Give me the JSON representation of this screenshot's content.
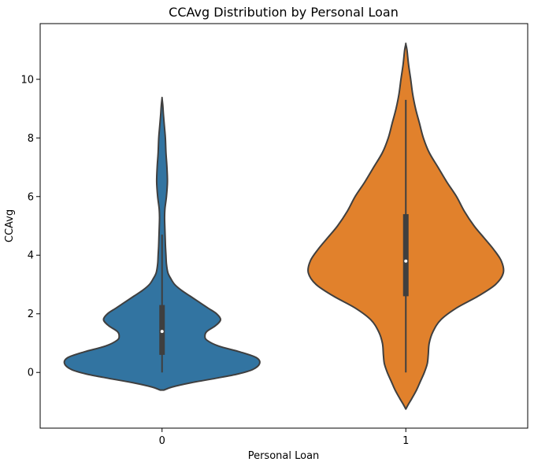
{
  "chart_data": {
    "type": "violin",
    "title": "CCAvg Distribution by Personal Loan",
    "xlabel": "Personal Loan",
    "ylabel": "CCAvg",
    "categories": [
      "0",
      "1"
    ],
    "ylim": [
      -1.9,
      11.9
    ],
    "yticks": [
      0,
      2,
      4,
      6,
      8,
      10
    ],
    "grid": false,
    "colors": [
      "#3274a1",
      "#e1812c"
    ],
    "edge_color": "#3f3f3f",
    "violins": [
      {
        "category": "0",
        "color": "#3274a1",
        "quartiles": {
          "min": 0,
          "q1": 0.6,
          "median": 1.4,
          "q3": 2.3,
          "whisker_high": 4.7
        },
        "profile": [
          [
            -0.6,
            0.02
          ],
          [
            -0.5,
            0.1
          ],
          [
            -0.35,
            0.3
          ],
          [
            -0.2,
            0.55
          ],
          [
            -0.05,
            0.78
          ],
          [
            0.1,
            0.93
          ],
          [
            0.3,
            1.0
          ],
          [
            0.5,
            0.97
          ],
          [
            0.7,
            0.8
          ],
          [
            0.9,
            0.58
          ],
          [
            1.1,
            0.46
          ],
          [
            1.25,
            0.44
          ],
          [
            1.4,
            0.46
          ],
          [
            1.6,
            0.55
          ],
          [
            1.8,
            0.6
          ],
          [
            2.0,
            0.56
          ],
          [
            2.2,
            0.47
          ],
          [
            2.4,
            0.38
          ],
          [
            2.6,
            0.29
          ],
          [
            2.8,
            0.2
          ],
          [
            3.0,
            0.13
          ],
          [
            3.2,
            0.09
          ],
          [
            3.4,
            0.06
          ],
          [
            3.7,
            0.045
          ],
          [
            4.0,
            0.04
          ],
          [
            4.3,
            0.035
          ],
          [
            4.6,
            0.032
          ],
          [
            5.0,
            0.028
          ],
          [
            5.3,
            0.026
          ],
          [
            5.6,
            0.03
          ],
          [
            6.0,
            0.045
          ],
          [
            6.5,
            0.055
          ],
          [
            7.0,
            0.05
          ],
          [
            7.5,
            0.04
          ],
          [
            8.0,
            0.034
          ],
          [
            8.4,
            0.024
          ],
          [
            8.8,
            0.014
          ],
          [
            9.1,
            0.008
          ],
          [
            9.35,
            0.0
          ]
        ]
      },
      {
        "category": "1",
        "color": "#e1812c",
        "quartiles": {
          "min": 0,
          "q1": 2.6,
          "median": 3.8,
          "q3": 5.4,
          "whisker_high": 9.3
        },
        "profile": [
          [
            -1.25,
            0.0
          ],
          [
            -1.1,
            0.012
          ],
          [
            -0.9,
            0.03
          ],
          [
            -0.6,
            0.055
          ],
          [
            -0.3,
            0.075
          ],
          [
            0.0,
            0.095
          ],
          [
            0.3,
            0.11
          ],
          [
            0.6,
            0.115
          ],
          [
            1.0,
            0.12
          ],
          [
            1.4,
            0.14
          ],
          [
            1.8,
            0.18
          ],
          [
            2.2,
            0.26
          ],
          [
            2.6,
            0.37
          ],
          [
            3.0,
            0.46
          ],
          [
            3.4,
            0.5
          ],
          [
            3.8,
            0.49
          ],
          [
            4.2,
            0.45
          ],
          [
            4.6,
            0.4
          ],
          [
            5.0,
            0.35
          ],
          [
            5.5,
            0.3
          ],
          [
            6.0,
            0.26
          ],
          [
            6.5,
            0.21
          ],
          [
            7.0,
            0.165
          ],
          [
            7.5,
            0.12
          ],
          [
            8.0,
            0.09
          ],
          [
            8.5,
            0.07
          ],
          [
            9.0,
            0.05
          ],
          [
            9.5,
            0.035
          ],
          [
            10.0,
            0.025
          ],
          [
            10.5,
            0.014
          ],
          [
            11.0,
            0.006
          ],
          [
            11.2,
            0.0
          ]
        ]
      }
    ]
  }
}
